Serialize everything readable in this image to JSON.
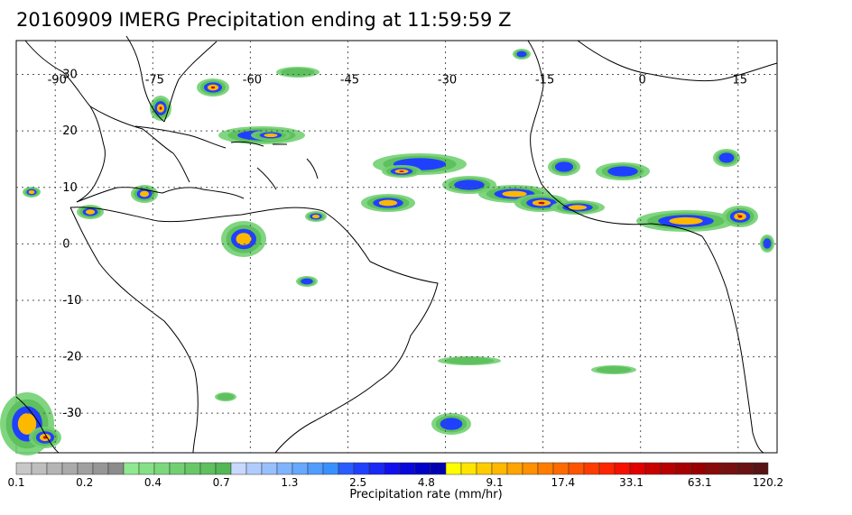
{
  "title": "20160909 IMERG Precipitation ending at 11:59:59 Z",
  "map": {
    "lon_labels": [
      "-90",
      "-75",
      "-60",
      "-45",
      "-30",
      "-15",
      "0",
      "15"
    ],
    "lat_labels": [
      "30",
      "20",
      "10",
      "0",
      "-10",
      "-20",
      "-30"
    ],
    "lon_range": [
      -96,
      21
    ],
    "lat_range": [
      -37,
      36
    ],
    "gridlines": true,
    "colors": {
      "coast": "#000000",
      "grid": "#555555",
      "frame": "#000000"
    }
  },
  "colorbar": {
    "label": "Precipitation rate (mm/hr)",
    "tick_labels": [
      "0.1",
      "0.2",
      "0.4",
      "0.7",
      "1.3",
      "2.5",
      "4.8",
      "9.1",
      "17.4",
      "33.1",
      "63.1",
      "120.2"
    ],
    "colors": [
      "#c8c8c8",
      "#bebebe",
      "#b4b4b4",
      "#aaaaaa",
      "#a0a0a0",
      "#969696",
      "#8c8c8c",
      "#90e890",
      "#86e086",
      "#7cd87c",
      "#72d072",
      "#68c868",
      "#5ec05e",
      "#54b854",
      "#c8d8ff",
      "#b0ccff",
      "#98c0ff",
      "#80b4ff",
      "#68a8ff",
      "#509cff",
      "#3890ff",
      "#2a5cff",
      "#2040ff",
      "#1828f5",
      "#1010ee",
      "#0808dc",
      "#0000c8",
      "#0000b0",
      "#ffff00",
      "#ffe400",
      "#ffcc00",
      "#ffb800",
      "#ffa400",
      "#ff9000",
      "#ff7c00",
      "#ff6a00",
      "#ff5400",
      "#ff3c00",
      "#ff2400",
      "#f51000",
      "#e00000",
      "#c80000",
      "#b80000",
      "#a80000",
      "#980000",
      "#880a0a",
      "#781010",
      "#681212",
      "#581414"
    ]
  }
}
